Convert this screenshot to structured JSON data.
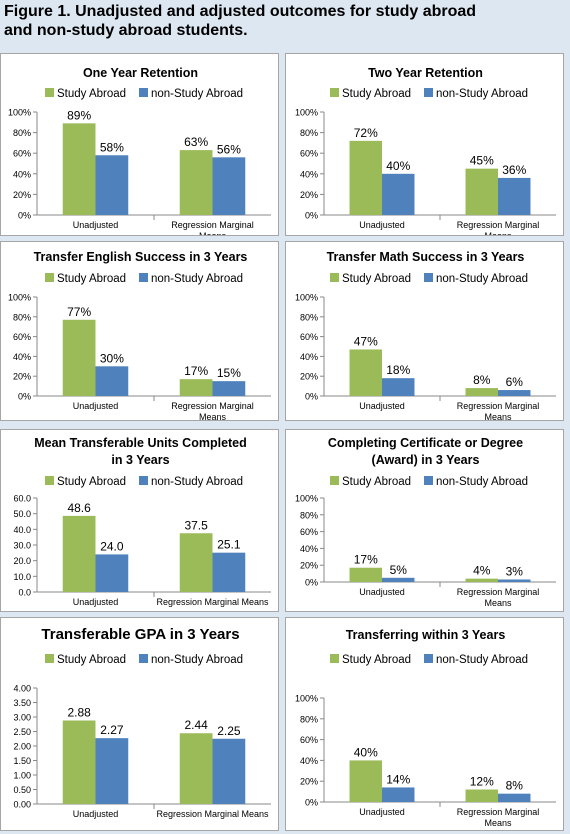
{
  "figure": {
    "title_line1": "Figure 1. Unadjusted and adjusted outcomes for study abroad",
    "title_line2": "and non-study abroad students."
  },
  "colors": {
    "study_abroad": "#9bbb59",
    "non_study_abroad": "#4f81bd"
  },
  "chart_data": [
    {
      "type": "bar",
      "title": [
        "One Year Retention"
      ],
      "categories": [
        [
          "Unadjusted"
        ],
        [
          "Regression Marginal",
          "Means"
        ]
      ],
      "series": [
        {
          "name": "Study Abroad",
          "values": [
            89,
            63
          ]
        },
        {
          "name": "non-Study Abroad",
          "values": [
            58,
            56
          ]
        }
      ],
      "ylim": [
        0,
        100
      ],
      "ticks": [
        0,
        20,
        40,
        60,
        80,
        100
      ],
      "tick_labels": [
        "0%",
        "20%",
        "40%",
        "60%",
        "80%",
        "100%"
      ],
      "data_labels": [
        [
          "89%",
          "63%"
        ],
        [
          "58%",
          "56%"
        ]
      ],
      "legend": "top"
    },
    {
      "type": "bar",
      "title": [
        "Two Year Retention"
      ],
      "categories": [
        [
          "Unadjusted"
        ],
        [
          "Regression Marginal",
          "Means"
        ]
      ],
      "series": [
        {
          "name": "Study Abroad",
          "values": [
            72,
            45
          ]
        },
        {
          "name": "non-Study Abroad",
          "values": [
            40,
            36
          ]
        }
      ],
      "ylim": [
        0,
        100
      ],
      "ticks": [
        0,
        20,
        40,
        60,
        80,
        100
      ],
      "tick_labels": [
        "0%",
        "20%",
        "40%",
        "60%",
        "80%",
        "100%"
      ],
      "data_labels": [
        [
          "72%",
          "45%"
        ],
        [
          "40%",
          "36%"
        ]
      ],
      "legend": "top"
    },
    {
      "type": "bar",
      "title": [
        "Transfer English Success in 3 Years"
      ],
      "categories": [
        [
          "Unadjusted"
        ],
        [
          "Regression Marginal",
          "Means"
        ]
      ],
      "series": [
        {
          "name": "Study Abroad",
          "values": [
            77,
            17
          ]
        },
        {
          "name": "non-Study Abroad",
          "values": [
            30,
            15
          ]
        }
      ],
      "ylim": [
        0,
        100
      ],
      "ticks": [
        0,
        20,
        40,
        60,
        80,
        100
      ],
      "tick_labels": [
        "0%",
        "20%",
        "40%",
        "60%",
        "80%",
        "100%"
      ],
      "data_labels": [
        [
          "77%",
          "17%"
        ],
        [
          "30%",
          "15%"
        ]
      ],
      "legend": "top"
    },
    {
      "type": "bar",
      "title": [
        "Transfer Math Success in 3 Years"
      ],
      "categories": [
        [
          "Unadjusted"
        ],
        [
          "Regression Marginal",
          "Means"
        ]
      ],
      "series": [
        {
          "name": "Study Abroad",
          "values": [
            47,
            8
          ]
        },
        {
          "name": "non-Study Abroad",
          "values": [
            18,
            6
          ]
        }
      ],
      "ylim": [
        0,
        100
      ],
      "ticks": [
        0,
        20,
        40,
        60,
        80,
        100
      ],
      "tick_labels": [
        "0%",
        "20%",
        "40%",
        "60%",
        "80%",
        "100%"
      ],
      "data_labels": [
        [
          "47%",
          "8%"
        ],
        [
          "18%",
          "6%"
        ]
      ],
      "legend": "top"
    },
    {
      "type": "bar",
      "title": [
        "Mean Transferable Units Completed",
        "in 3 Years"
      ],
      "categories": [
        [
          "Unadjusted"
        ],
        [
          "Regression Marginal Means"
        ]
      ],
      "series": [
        {
          "name": "Study Abroad",
          "values": [
            48.6,
            37.5
          ]
        },
        {
          "name": "non-Study Abroad",
          "values": [
            24.0,
            25.1
          ]
        }
      ],
      "ylim": [
        0,
        60
      ],
      "ticks": [
        0,
        10,
        20,
        30,
        40,
        50,
        60
      ],
      "tick_labels": [
        "0.0",
        "10.0",
        "20.0",
        "30.0",
        "40.0",
        "50.0",
        "60.0"
      ],
      "data_labels": [
        [
          "48.6",
          "37.5"
        ],
        [
          "24.0",
          "25.1"
        ]
      ],
      "legend": "top"
    },
    {
      "type": "bar",
      "title": [
        "Completing Certificate or Degree",
        "(Award) in 3 Years"
      ],
      "categories": [
        [
          "Unadjusted"
        ],
        [
          "Regression Marginal",
          "Means"
        ]
      ],
      "series": [
        {
          "name": "Study Abroad",
          "values": [
            17,
            4
          ]
        },
        {
          "name": "non-Study Abroad",
          "values": [
            5,
            3
          ]
        }
      ],
      "ylim": [
        0,
        100
      ],
      "ticks": [
        0,
        20,
        40,
        60,
        80,
        100
      ],
      "tick_labels": [
        "0%",
        "20%",
        "40%",
        "60%",
        "80%",
        "100%"
      ],
      "data_labels": [
        [
          "17%",
          "4%"
        ],
        [
          "5%",
          "3%"
        ]
      ],
      "legend": "top"
    },
    {
      "type": "bar",
      "title": [
        "Transferable GPA in 3 Years"
      ],
      "categories": [
        [
          "Unadjusted"
        ],
        [
          "Regression Marginal Means"
        ]
      ],
      "series": [
        {
          "name": "Study Abroad",
          "values": [
            2.88,
            2.44
          ]
        },
        {
          "name": "non-Study Abroad",
          "values": [
            2.27,
            2.25
          ]
        }
      ],
      "ylim": [
        0,
        4
      ],
      "ticks": [
        0,
        0.5,
        1,
        1.5,
        2,
        2.5,
        3,
        3.5,
        4
      ],
      "tick_labels": [
        "0.00",
        "0.50",
        "1.00",
        "1.50",
        "2.00",
        "2.50",
        "3.00",
        "3.50",
        "4.00"
      ],
      "data_labels": [
        [
          "2.88",
          "2.44"
        ],
        [
          "2.27",
          "2.25"
        ]
      ],
      "legend": "top"
    },
    {
      "type": "bar",
      "title": [
        "Transferring within 3 Years"
      ],
      "categories": [
        [
          "Unadjusted"
        ],
        [
          "Regression Marginal",
          "Means"
        ]
      ],
      "series": [
        {
          "name": "Study Abroad",
          "values": [
            40,
            12
          ]
        },
        {
          "name": "non-Study Abroad",
          "values": [
            14,
            8
          ]
        }
      ],
      "ylim": [
        0,
        100
      ],
      "ticks": [
        0,
        20,
        40,
        60,
        80,
        100
      ],
      "tick_labels": [
        "0%",
        "20%",
        "40%",
        "60%",
        "80%",
        "100%"
      ],
      "data_labels": [
        [
          "40%",
          "12%"
        ],
        [
          "14%",
          "8%"
        ]
      ],
      "legend": "top"
    }
  ]
}
